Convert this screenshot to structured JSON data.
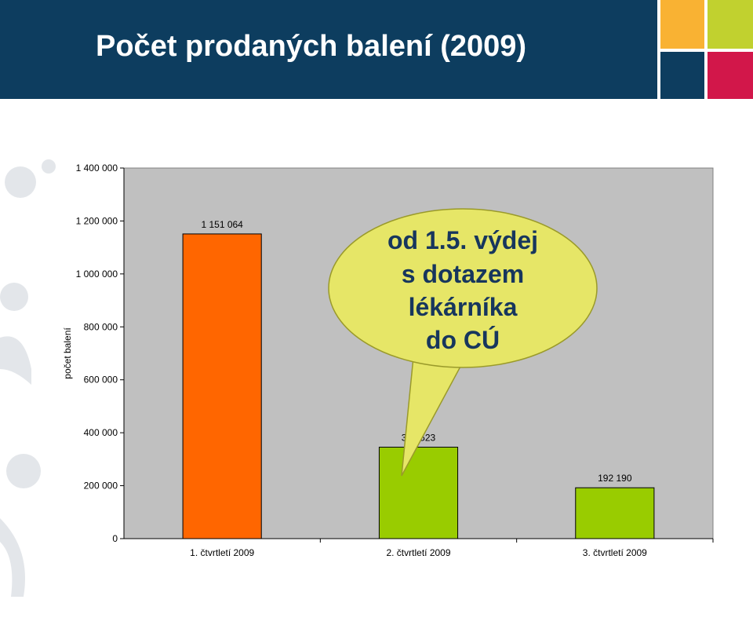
{
  "header": {
    "title": "Počet prodaných balení (2009)"
  },
  "colors": {
    "header_bg": "#0d3d5f",
    "tile_orange": "#f9b233",
    "tile_green": "#c1d12f",
    "tile_navy": "#0d3d5f",
    "tile_red": "#d2174a",
    "plot_bg": "#c0c0c0",
    "callout_fill": "#e6e667"
  },
  "chart_data": {
    "type": "bar",
    "title": "",
    "xlabel": "",
    "ylabel": "počet balení",
    "ylim": [
      0,
      1400000
    ],
    "yticks": [
      0,
      200000,
      400000,
      600000,
      800000,
      1000000,
      1200000,
      1400000
    ],
    "ytick_labels": [
      "0",
      "200 000",
      "400 000",
      "600 000",
      "800 000",
      "1 000 000",
      "1 200 000",
      "1 400 000"
    ],
    "categories": [
      "1. čtvrtletí 2009",
      "2. čtvrtletí 2009",
      "3. čtvrtletí 2009"
    ],
    "values": [
      1151064,
      345523,
      192190
    ],
    "value_labels": [
      "1 151 064",
      "345 523",
      "192 190"
    ],
    "bar_colors": [
      "#ff6600",
      "#99cc00",
      "#99cc00"
    ],
    "grid": false,
    "annotation": {
      "lines": [
        "od 1.5. výdej",
        "s dotazem",
        "lékárníka",
        "do CÚ"
      ]
    }
  }
}
